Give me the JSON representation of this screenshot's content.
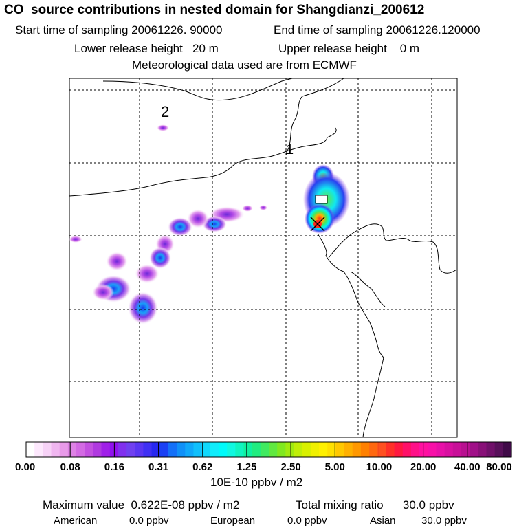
{
  "title": "CO  source contributions in nested domain for Shangdianzi_200612",
  "sampling": {
    "start": "Start time of sampling 20061226. 90000",
    "end": "End time of sampling 20061226.120000"
  },
  "release": {
    "lower": "Lower release height   20 m",
    "upper": "Upper release height    0 m"
  },
  "met_note": "Meteorological data used are from ECMWF",
  "map": {
    "region_labels": [
      "2",
      "1"
    ],
    "receptor_marker": "x-marker-with-red-center"
  },
  "colorbar": {
    "labels": [
      "0.00",
      "0.08",
      "0.16",
      "0.31",
      "0.62",
      "1.25",
      "2.50",
      "5.00",
      "10.00",
      "20.00",
      "40.00",
      "80.00"
    ],
    "colors": [
      "#ffffff",
      "#fde8fd",
      "#f7d2f7",
      "#f0b6f0",
      "#e89ae9",
      "#de82e5",
      "#d36ae3",
      "#c350e0",
      "#b039e0",
      "#a020e8",
      "#9010ee",
      "#8030ee",
      "#7040f0",
      "#5a36f2",
      "#4030f4",
      "#2828f0",
      "#1a40f4",
      "#1470f8",
      "#1090f8",
      "#10a8fa",
      "#10c0fc",
      "#10d8fc",
      "#10ecfc",
      "#00fafa",
      "#10f8e0",
      "#10f4c0",
      "#10f0a0",
      "#20ec80",
      "#40ea60",
      "#60e840",
      "#80e820",
      "#a0ea10",
      "#c0ee08",
      "#d8f000",
      "#f0f000",
      "#fff000",
      "#ffe000",
      "#ffc800",
      "#ffb000",
      "#ff9800",
      "#ff8000",
      "#ff6810",
      "#ff5020",
      "#ff3028",
      "#ff1840",
      "#ff1068",
      "#ff1088",
      "#ff10a0",
      "#f810a8",
      "#e810a8",
      "#d810a0",
      "#c81098",
      "#b81090",
      "#a01088",
      "#881078",
      "#70106a",
      "#58105a",
      "#400a48"
    ],
    "units": "10E-10 ppbv / m2"
  },
  "stats": {
    "max_value": "Maximum value  0.622E-08 ppbv / m2",
    "total": "Total mixing ratio      30.0 ppbv",
    "american_label": "American",
    "american_value": "0.0 ppbv",
    "european_label": "European",
    "european_value": "0.0 ppbv",
    "asian_label": "Asian",
    "asian_value": "30.0 ppbv"
  }
}
